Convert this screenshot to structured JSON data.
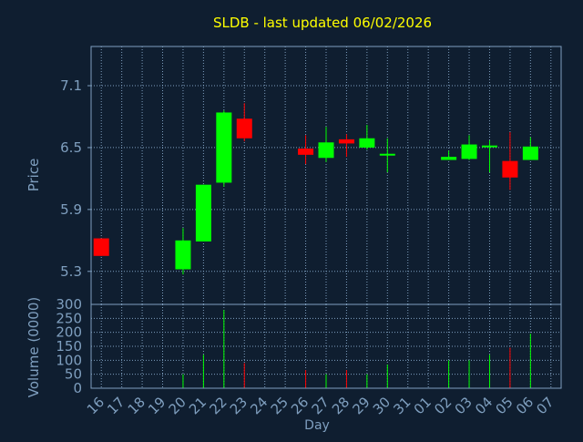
{
  "title": "SLDB - last updated 06/02/2026",
  "colors": {
    "background": "#0f1e30",
    "title": "#ffff00",
    "axis_text": "#7f9fbf",
    "grid": "#7f9fbf",
    "frame": "#7f9fbf",
    "up": "#00ff00",
    "down": "#ff0000"
  },
  "chart_data": {
    "type": "candlestick",
    "title": "SLDB - last updated 06/02/2026",
    "xlabel": "Day",
    "ylabel_price": "Price",
    "ylabel_volume": "Volume (0000)",
    "grid": true,
    "categories": [
      "16",
      "17",
      "18",
      "19",
      "20",
      "21",
      "22",
      "23",
      "24",
      "25",
      "26",
      "27",
      "28",
      "29",
      "30",
      "31",
      "01",
      "02",
      "03",
      "04",
      "05",
      "06",
      "07"
    ],
    "price_ylim": [
      4.98,
      7.48
    ],
    "price_ticks": [
      5.3,
      5.9,
      6.5,
      7.1
    ],
    "price_tick_labels": [
      "5.3",
      "5.9",
      "6.5",
      "7.1"
    ],
    "volume_ylim": [
      0,
      300
    ],
    "volume_ticks": [
      0,
      50,
      100,
      150,
      200,
      250,
      300
    ],
    "volume_tick_labels": [
      "0",
      "50",
      "100",
      "150",
      "200",
      "250",
      "300"
    ],
    "candles": [
      {
        "x": 16,
        "open": 5.62,
        "close": 5.45,
        "high": 5.62,
        "low": 5.45,
        "volume": 0
      },
      {
        "x": 20,
        "open": 5.32,
        "close": 5.6,
        "high": 5.72,
        "low": 5.27,
        "volume": 50
      },
      {
        "x": 21,
        "open": 5.59,
        "close": 6.14,
        "high": 6.14,
        "low": 5.59,
        "volume": 120
      },
      {
        "x": 22,
        "open": 6.16,
        "close": 6.84,
        "high": 6.86,
        "low": 6.12,
        "volume": 280
      },
      {
        "x": 23,
        "open": 6.78,
        "close": 6.59,
        "high": 6.93,
        "low": 6.56,
        "volume": 90
      },
      {
        "x": 26,
        "open": 6.49,
        "close": 6.43,
        "high": 6.62,
        "low": 6.34,
        "volume": 65
      },
      {
        "x": 27,
        "open": 6.4,
        "close": 6.55,
        "high": 6.7,
        "low": 6.36,
        "volume": 50
      },
      {
        "x": 28,
        "open": 6.58,
        "close": 6.54,
        "high": 6.63,
        "low": 6.41,
        "volume": 65
      },
      {
        "x": 29,
        "open": 6.5,
        "close": 6.59,
        "high": 6.72,
        "low": 6.48,
        "volume": 50
      },
      {
        "x": 30,
        "open": 6.44,
        "close": 6.44,
        "high": 6.59,
        "low": 6.26,
        "volume": 85
      },
      {
        "x": 2,
        "open": 6.38,
        "close": 6.41,
        "high": 6.47,
        "low": 6.38,
        "volume": 100
      },
      {
        "x": 3,
        "open": 6.39,
        "close": 6.53,
        "high": 6.62,
        "low": 6.38,
        "volume": 100
      },
      {
        "x": 4,
        "open": 6.51,
        "close": 6.52,
        "high": 6.57,
        "low": 6.26,
        "volume": 120
      },
      {
        "x": 5,
        "open": 6.37,
        "close": 6.21,
        "high": 6.65,
        "low": 6.09,
        "volume": 145
      },
      {
        "x": 6,
        "open": 6.38,
        "close": 6.51,
        "high": 6.6,
        "low": 6.38,
        "volume": 195
      }
    ]
  }
}
